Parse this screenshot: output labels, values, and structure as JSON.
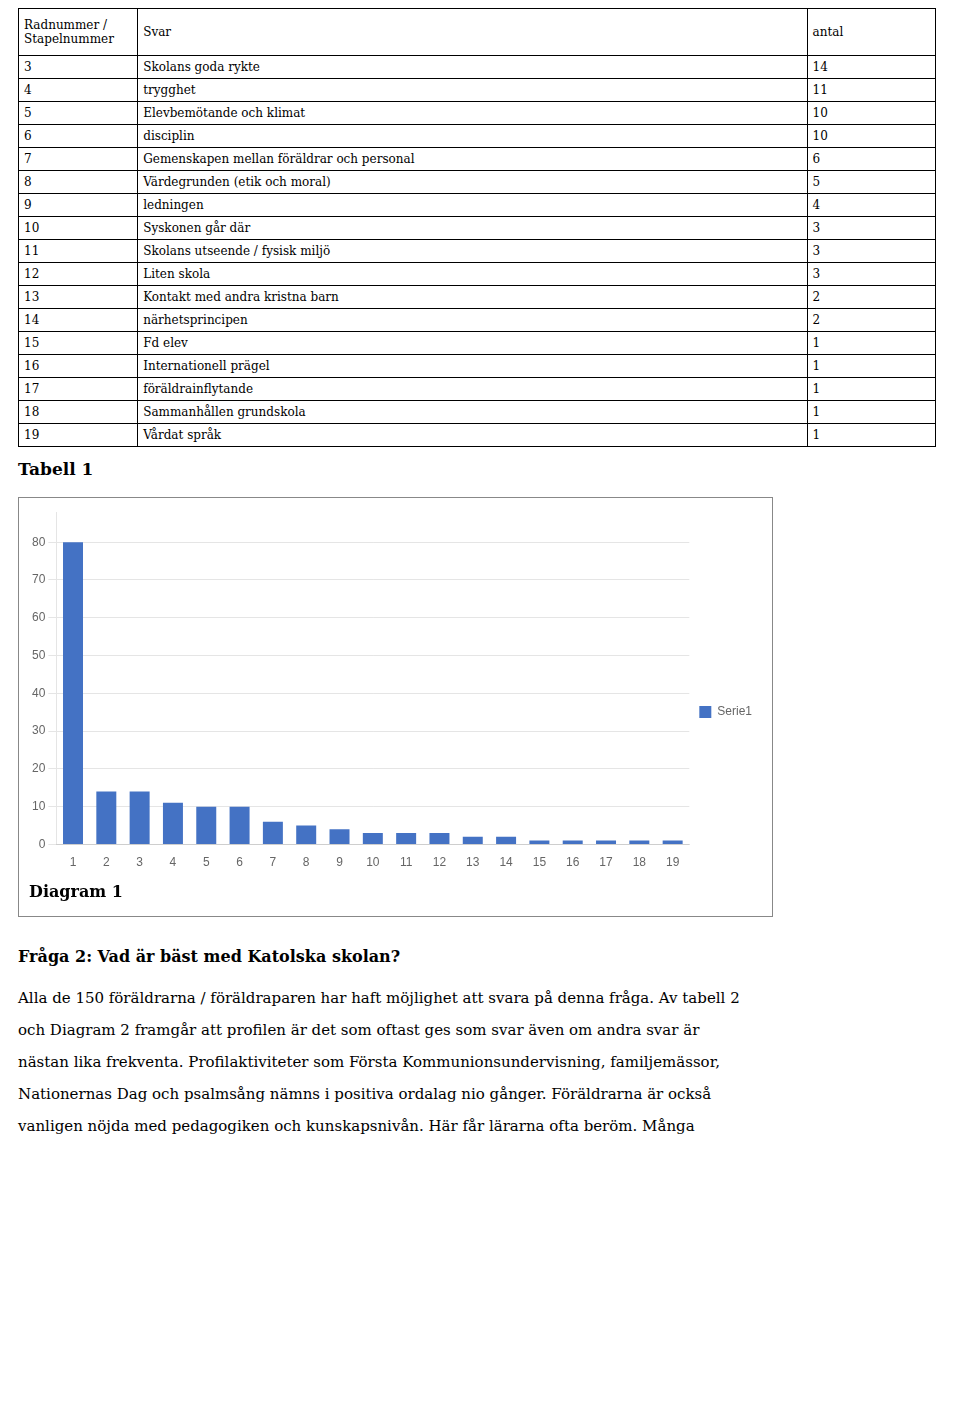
{
  "chart_data": {
    "type": "bar",
    "title": "Diagram 1",
    "categories": [
      1,
      2,
      3,
      4,
      5,
      6,
      7,
      8,
      9,
      10,
      11,
      12,
      13,
      14,
      15,
      16,
      17,
      18,
      19
    ],
    "series": [
      {
        "name": "Serie1",
        "color": "#4472C4",
        "values": [
          80,
          14,
          14,
          11,
          10,
          10,
          6,
          5,
          4,
          3,
          3,
          3,
          2,
          2,
          1,
          1,
          1,
          1,
          1
        ]
      }
    ],
    "ylim": [
      0,
      88
    ],
    "yticks": [
      0,
      10,
      20,
      30,
      40,
      50,
      60,
      70,
      80
    ],
    "grid": true,
    "legend": "right"
  },
  "table": {
    "label": "Tabell 1",
    "headers": [
      "Radnummer /\nStapelnummer",
      "Svar",
      "antal"
    ],
    "rows": [
      [
        "3",
        "Skolans goda rykte",
        "14"
      ],
      [
        "4",
        "trygghet",
        "11"
      ],
      [
        "5",
        "Elevbemötande och klimat",
        "10"
      ],
      [
        "6",
        "disciplin",
        "10"
      ],
      [
        "7",
        "Gemenskapen mellan föräldrar och personal",
        "6"
      ],
      [
        "8",
        "Värdegrunden (etik och moral)",
        "5"
      ],
      [
        "9",
        "ledningen",
        "4"
      ],
      [
        "10",
        "Syskonen går där",
        "3"
      ],
      [
        "11",
        "Skolans utseende / fysisk miljö",
        "3"
      ],
      [
        "12",
        "Liten skola",
        "3"
      ],
      [
        "13",
        "Kontakt med andra kristna barn",
        "2"
      ],
      [
        "14",
        "närhetsprincipen",
        "2"
      ],
      [
        "15",
        "Fd elev",
        "1"
      ],
      [
        "16",
        "Internationell prägel",
        "1"
      ],
      [
        "17",
        "föräldrainflytande",
        "1"
      ],
      [
        "18",
        "Sammanhållen grundskola",
        "1"
      ],
      [
        "19",
        "Vårdat språk",
        "1"
      ]
    ]
  },
  "heading": "Fråga 2: Vad är bäst med Katolska skolan?",
  "paragraph_lines": [
    "Alla de 150 föräldrarna / föräldraparen har haft möjlighet att svara på denna fråga. Av tabell 2",
    "och Diagram 2 framgår att profilen är det som oftast ges som svar även om andra svar är",
    "nästan lika frekventa. Profilaktiviteter som Första Kommunionsundervisning, familjemässor,",
    "Nationernas Dag och psalmsång nämns i positiva ordalag nio gånger. Föräldrarna är också",
    "vanligen nöjda med pedagogiken och kunskapsnivån. Här får lärarna ofta beröm. Många"
  ]
}
